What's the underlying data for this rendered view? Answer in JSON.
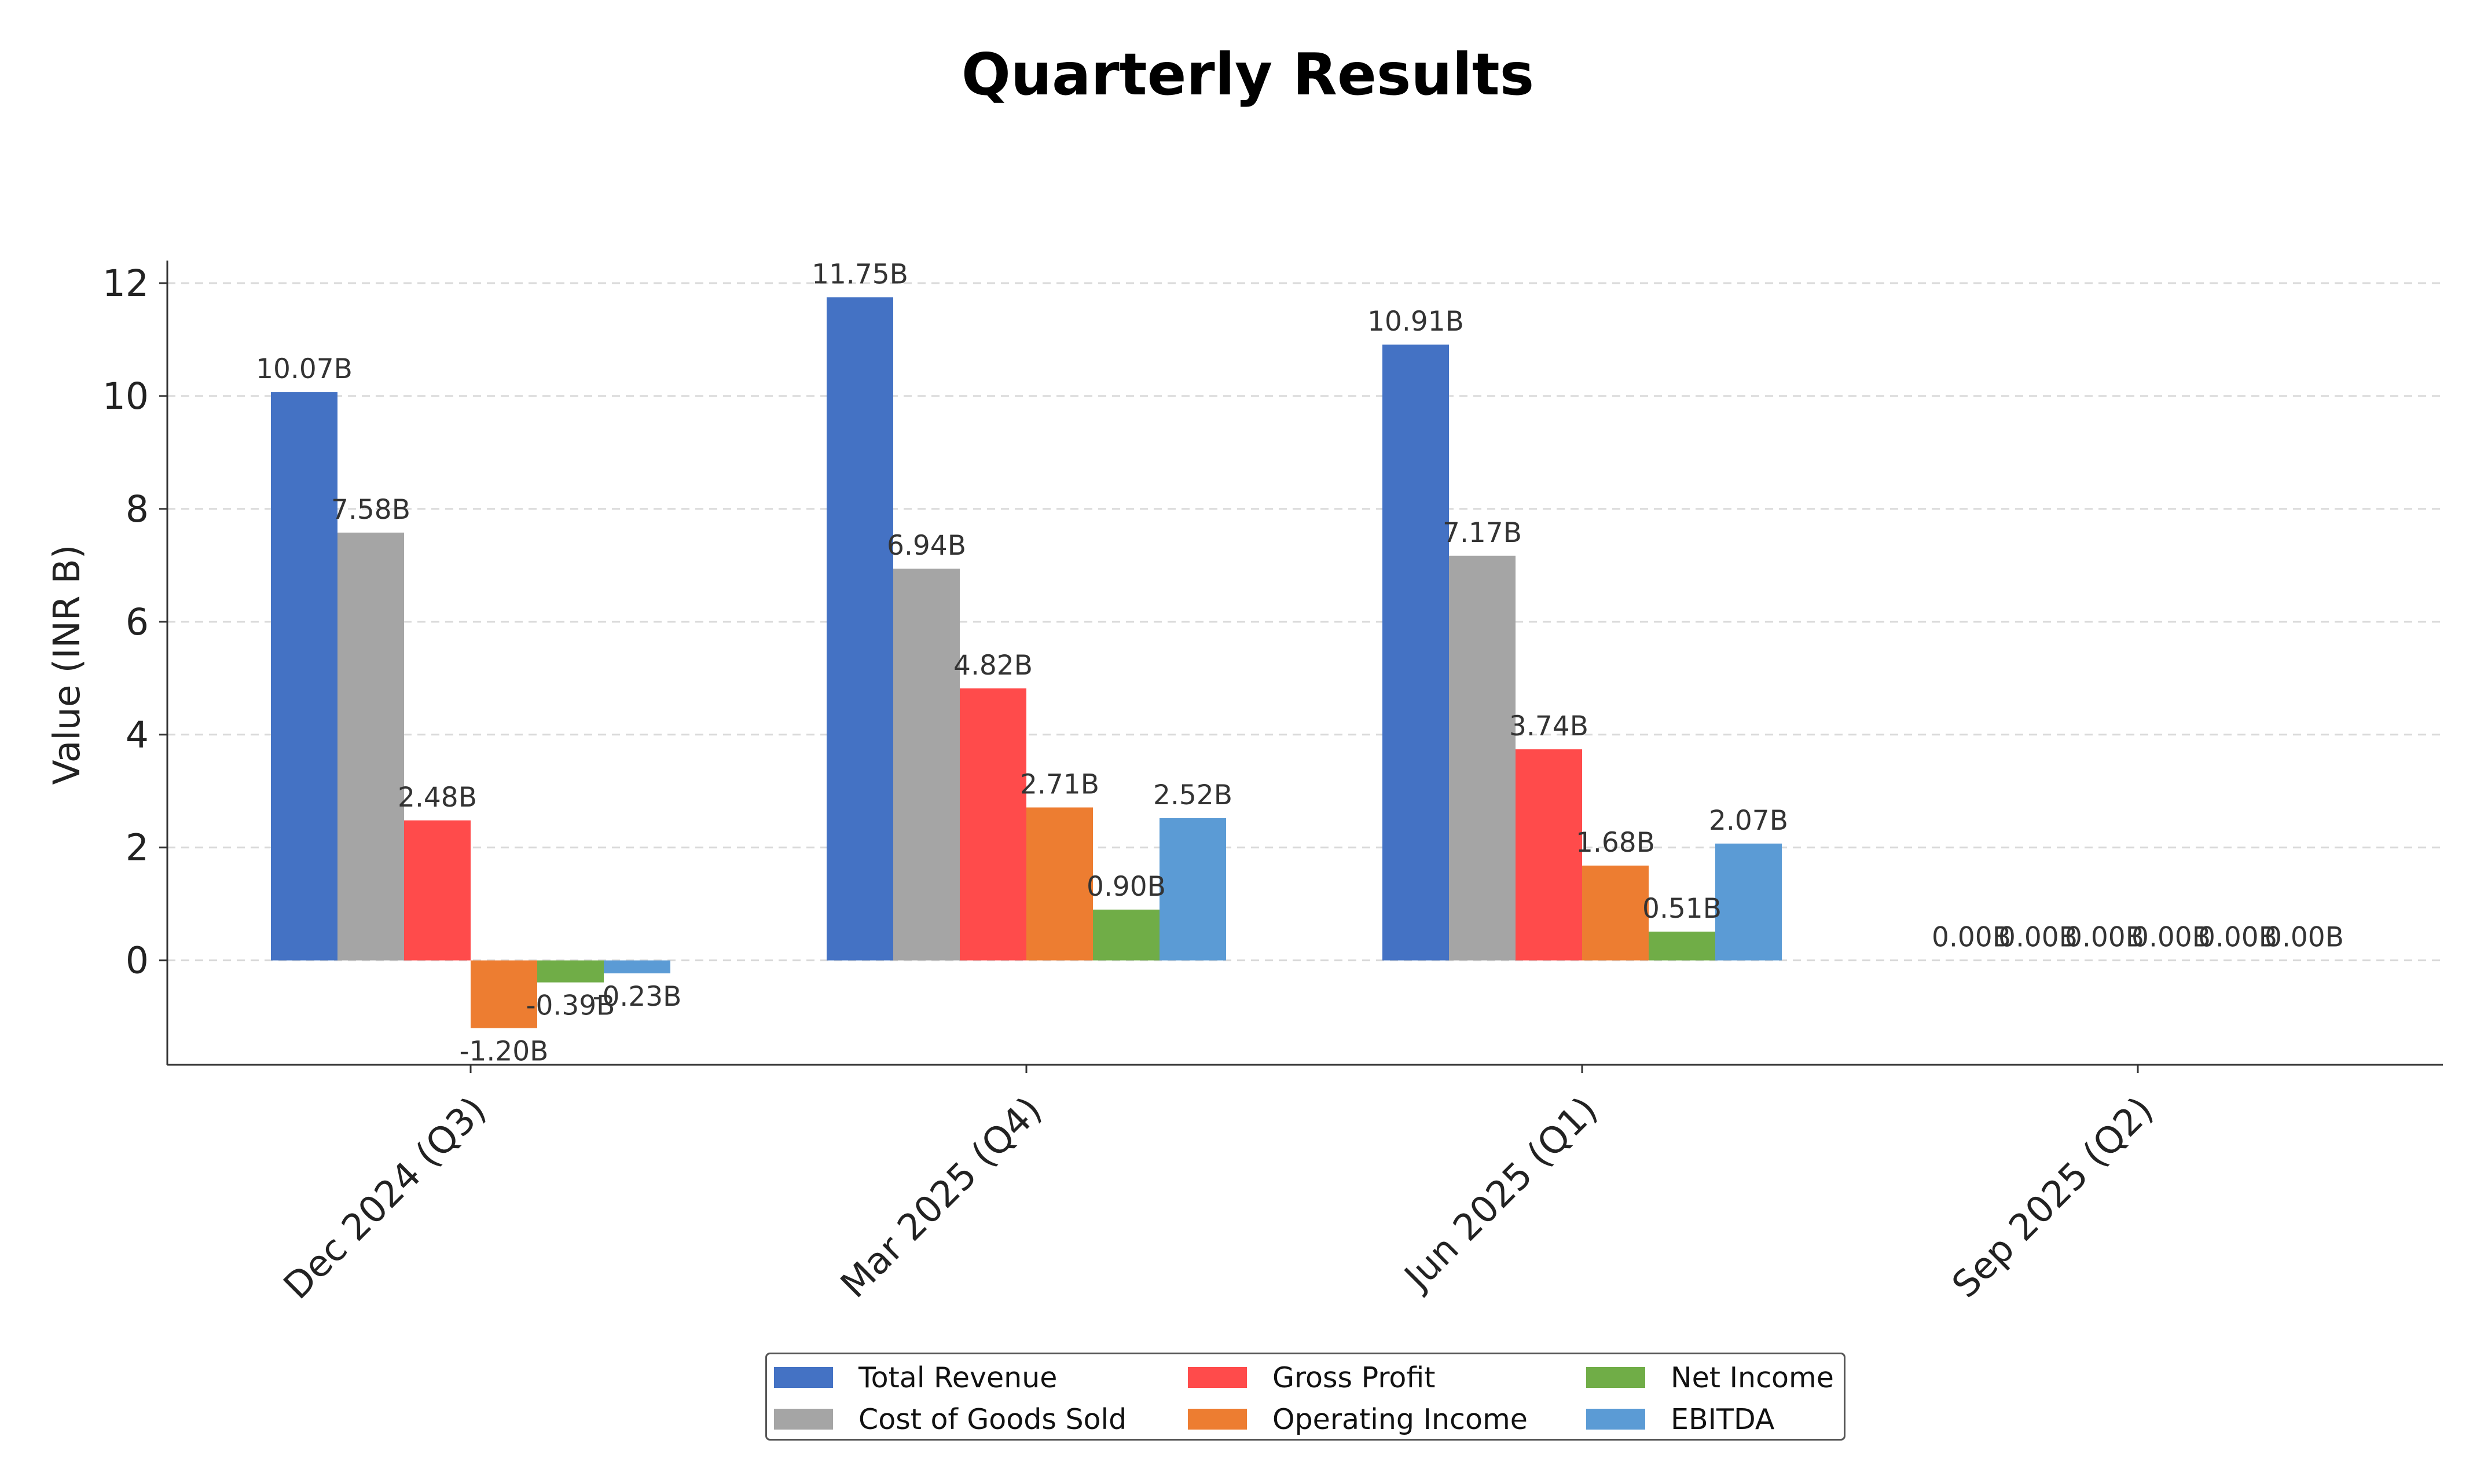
{
  "chart_data": {
    "type": "bar",
    "title": "Quarterly Results",
    "xlabel": "",
    "ylabel": "Value (INR B)",
    "ylim": [
      -1.85,
      12.4
    ],
    "yticks": [
      0,
      2,
      4,
      6,
      8,
      10,
      12
    ],
    "grid": "horizontal dashed",
    "legend_position": "bottom-center",
    "categories": [
      "Dec 2024 (Q3)",
      "Mar 2025 (Q4)",
      "Jun 2025 (Q1)",
      "Sep 2025 (Q2)"
    ],
    "series": [
      {
        "name": "Total Revenue",
        "color": "#4472C4",
        "values": [
          10.07,
          11.75,
          10.91,
          0.0
        ],
        "labels": [
          "10.07B",
          "11.75B",
          "10.91B",
          "0.00B"
        ]
      },
      {
        "name": "Cost of Goods Sold",
        "color": "#A5A5A5",
        "values": [
          7.58,
          6.94,
          7.17,
          0.0
        ],
        "labels": [
          "7.58B",
          "6.94B",
          "7.17B",
          "0.00B"
        ]
      },
      {
        "name": "Gross Profit",
        "color": "#FF4B4B",
        "values": [
          2.48,
          4.82,
          3.74,
          0.0
        ],
        "labels": [
          "2.48B",
          "4.82B",
          "3.74B",
          "0.00B"
        ]
      },
      {
        "name": "Operating Income",
        "color": "#ED7D31",
        "values": [
          -1.2,
          2.71,
          1.68,
          0.0
        ],
        "labels": [
          "-1.20B",
          "2.71B",
          "1.68B",
          "0.00B"
        ]
      },
      {
        "name": "Net Income",
        "color": "#70AD47",
        "values": [
          -0.39,
          0.9,
          0.51,
          0.0
        ],
        "labels": [
          "-0.39B",
          "0.90B",
          "0.51B",
          "0.00B"
        ]
      },
      {
        "name": "EBITDA",
        "color": "#5B9BD5",
        "values": [
          -0.23,
          2.52,
          2.07,
          0.0
        ],
        "labels": [
          "-0.23B",
          "2.52B",
          "2.07B",
          "0.00B"
        ]
      }
    ]
  }
}
